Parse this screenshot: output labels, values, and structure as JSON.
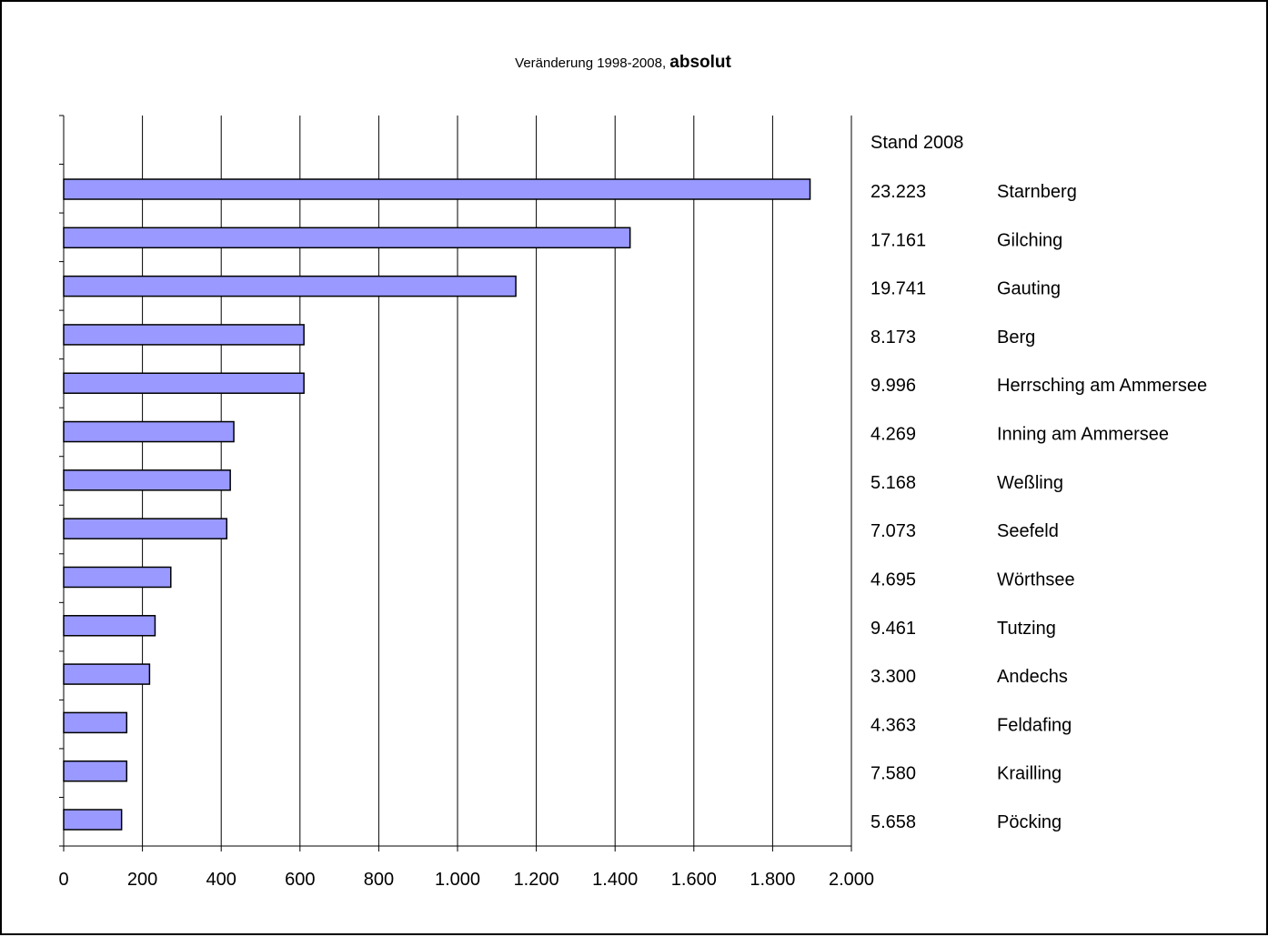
{
  "chart_data": {
    "type": "bar",
    "orientation": "horizontal",
    "title_prefix": "Veränderung 1998-2008, ",
    "title_bold": "absolut",
    "categories": [
      "Starnberg",
      "Gilching",
      "Gauting",
      "Berg",
      "Herrsching am Ammersee",
      "Inning am Ammersee",
      "Weßling",
      "Seefeld",
      "Wörthsee",
      "Tutzing",
      "Andechs",
      "Feldafing",
      "Krailling",
      "Pöcking"
    ],
    "values": [
      1895,
      1438,
      1148,
      610,
      610,
      432,
      423,
      414,
      272,
      232,
      218,
      160,
      160,
      147
    ],
    "stand_header": "Stand 2008",
    "stand_values": [
      "23.223",
      "17.161",
      "19.741",
      "8.173",
      "9.996",
      "4.269",
      "5.168",
      "7.073",
      "4.695",
      "9.461",
      "3.300",
      "4.363",
      "7.580",
      "5.658"
    ],
    "xticks": [
      0,
      200,
      400,
      600,
      800,
      1000,
      1200,
      1400,
      1600,
      1800,
      2000
    ],
    "xtick_labels": [
      "0",
      "200",
      "400",
      "600",
      "800",
      "1.000",
      "1.200",
      "1.400",
      "1.600",
      "1.800",
      "2.000"
    ],
    "xlim": [
      0,
      2000
    ],
    "grid": "vertical",
    "colors": {
      "bar_fill": "#9999ff",
      "bar_stroke": "#000000",
      "grid": "#000000"
    }
  }
}
